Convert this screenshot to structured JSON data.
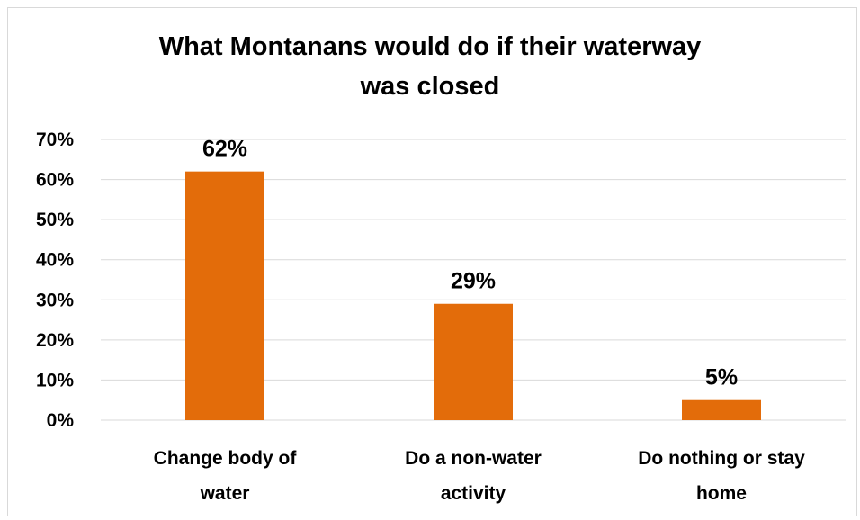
{
  "chart_data": {
    "type": "bar",
    "title_lines": [
      "What Montanans would do if their waterway",
      "was closed"
    ],
    "categories": [
      [
        "Change body of",
        "water"
      ],
      [
        "Do a non-water",
        "activity"
      ],
      [
        "Do nothing or stay",
        "home"
      ]
    ],
    "values": [
      62,
      29,
      5
    ],
    "data_labels": [
      "62%",
      "29%",
      "5%"
    ],
    "ylim": [
      0,
      70
    ],
    "yticks": [
      0,
      10,
      20,
      30,
      40,
      50,
      60,
      70
    ],
    "ytick_labels": [
      "0%",
      "10%",
      "20%",
      "30%",
      "40%",
      "50%",
      "60%",
      "70%"
    ],
    "grid": true,
    "legend": "none",
    "bar_color": "#e36c0a",
    "grid_color": "#d9d9d9"
  }
}
